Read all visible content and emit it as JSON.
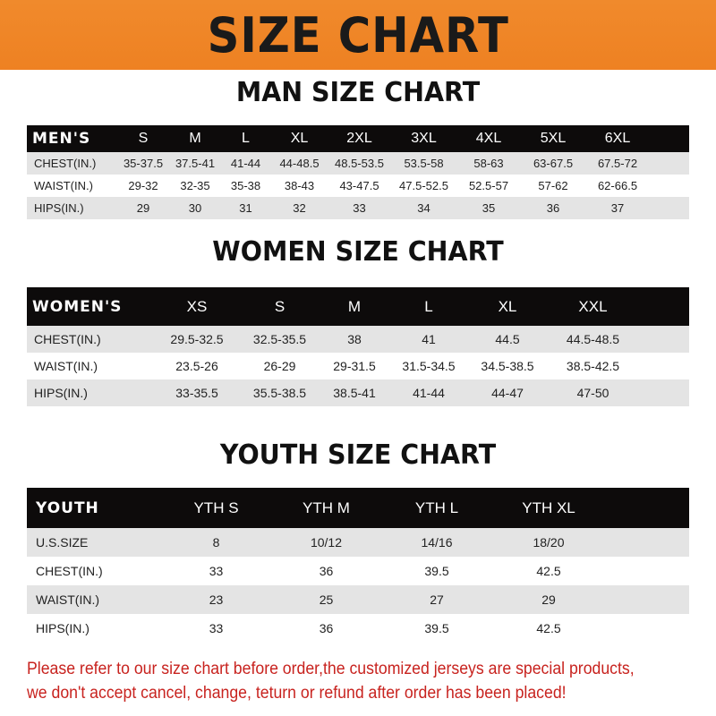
{
  "banner": {
    "title": "SIZE CHART",
    "color": "#ef8426"
  },
  "men": {
    "title": "MAN SIZE CHART",
    "headers": [
      "MEN'S",
      "S",
      "M",
      "L",
      "XL",
      "2XL",
      "3XL",
      "4XL",
      "5XL",
      "6XL"
    ],
    "rows": [
      [
        "CHEST(IN.)",
        "35-37.5",
        "37.5-41",
        "41-44",
        "44-48.5",
        "48.5-53.5",
        "53.5-58",
        "58-63",
        "63-67.5",
        "67.5-72"
      ],
      [
        "WAIST(IN.)",
        "29-32",
        "32-35",
        "35-38",
        "38-43",
        "43-47.5",
        "47.5-52.5",
        "52.5-57",
        "57-62",
        "62-66.5"
      ],
      [
        "HIPS(IN.)",
        "29",
        "30",
        "31",
        "32",
        "33",
        "34",
        "35",
        "36",
        "37"
      ]
    ]
  },
  "women": {
    "title": "WOMEN SIZE CHART",
    "headers": [
      "WOMEN'S",
      "XS",
      "S",
      "M",
      "L",
      "XL",
      "XXL"
    ],
    "rows": [
      [
        "CHEST(IN.)",
        "29.5-32.5",
        "32.5-35.5",
        "38",
        "41",
        "44.5",
        "44.5-48.5"
      ],
      [
        "WAIST(IN.)",
        "23.5-26",
        "26-29",
        "29-31.5",
        "31.5-34.5",
        "34.5-38.5",
        "38.5-42.5"
      ],
      [
        "HIPS(IN.)",
        "33-35.5",
        "35.5-38.5",
        "38.5-41",
        "41-44",
        "44-47",
        "47-50"
      ]
    ]
  },
  "youth": {
    "title": "YOUTH SIZE CHART",
    "headers": [
      "YOUTH",
      "YTH S",
      "YTH M",
      "YTH L",
      "YTH XL"
    ],
    "rows": [
      [
        "U.S.SIZE",
        "8",
        "10/12",
        "14/16",
        "18/20"
      ],
      [
        "CHEST(IN.)",
        "33",
        "36",
        "39.5",
        "42.5"
      ],
      [
        "WAIST(IN.)",
        "23",
        "25",
        "27",
        "29"
      ],
      [
        "HIPS(IN.)",
        "33",
        "36",
        "39.5",
        "42.5"
      ]
    ]
  },
  "note": {
    "line1": "Please refer to our size chart before order,the customized jerseys are special products,",
    "line2": "we don't accept cancel, change, teturn or refund after order has been placed!",
    "color": "#c8231f"
  }
}
